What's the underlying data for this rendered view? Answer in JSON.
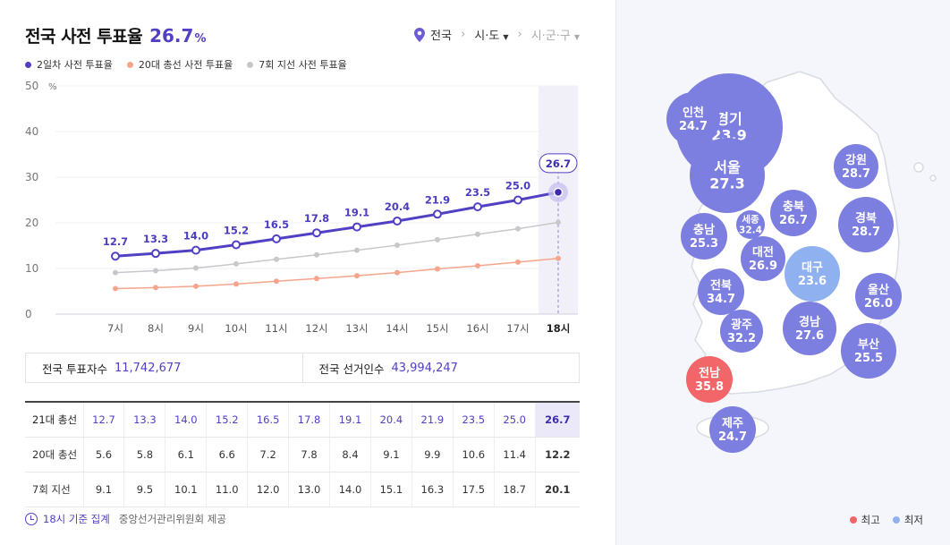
{
  "header": {
    "title": "전국 사전 투표율",
    "value": "26.7",
    "unit": "%"
  },
  "breadcrumb": {
    "level1": "전국",
    "level2": "시·도",
    "level3": "시·군·구"
  },
  "legend": [
    {
      "label": "2일차 사전 투표율",
      "color": "#5140c4"
    },
    {
      "label": "20대 총선 사전 투표율",
      "color": "#f7a48c"
    },
    {
      "label": "7회 지선 사전 투표율",
      "color": "#c8c8cc"
    }
  ],
  "chart_data": {
    "type": "line",
    "categories": [
      "7시",
      "8시",
      "9시",
      "10시",
      "11시",
      "12시",
      "13시",
      "14시",
      "15시",
      "16시",
      "17시",
      "18시"
    ],
    "series": [
      {
        "name": "2일차 사전 투표율",
        "color": "#5140c4",
        "values": [
          12.7,
          13.3,
          14.0,
          15.2,
          16.5,
          17.8,
          19.1,
          20.4,
          21.9,
          23.5,
          25.0,
          26.7
        ]
      },
      {
        "name": "20대 총선 사전 투표율",
        "color": "#f7a48c",
        "values": [
          5.6,
          5.8,
          6.1,
          6.6,
          7.2,
          7.8,
          8.4,
          9.1,
          9.9,
          10.6,
          11.4,
          12.2
        ]
      },
      {
        "name": "7회 지선 사전 투표율",
        "color": "#c8c8cc",
        "values": [
          9.1,
          9.5,
          10.1,
          11.0,
          12.0,
          13.0,
          14.0,
          15.1,
          16.3,
          17.5,
          18.7,
          20.1
        ]
      }
    ],
    "ylim": [
      0,
      50
    ],
    "yticks": [
      "0",
      "10",
      "20",
      "30",
      "40",
      "50"
    ],
    "yunit": "%",
    "highlight_label": "26.7",
    "grid": true
  },
  "summary": {
    "voters_label": "전국 투표자수",
    "voters_value": "11,742,677",
    "electorate_label": "전국 선거인수",
    "electorate_value": "43,994,247"
  },
  "table": {
    "rows": [
      {
        "label": "21대 총선",
        "values": [
          "12.7",
          "13.3",
          "14.0",
          "15.2",
          "16.5",
          "17.8",
          "19.1",
          "20.4",
          "21.9",
          "23.5",
          "25.0",
          "26.7"
        ]
      },
      {
        "label": "20대 총선",
        "values": [
          "5.6",
          "5.8",
          "6.1",
          "6.6",
          "7.2",
          "7.8",
          "8.4",
          "9.1",
          "9.9",
          "10.6",
          "11.4",
          "12.2"
        ]
      },
      {
        "label": "7회 지선",
        "values": [
          "9.1",
          "9.5",
          "10.1",
          "11.0",
          "12.0",
          "13.0",
          "14.0",
          "15.1",
          "16.3",
          "17.5",
          "18.7",
          "20.1"
        ]
      }
    ]
  },
  "footer": {
    "time": "18시 기준 집계",
    "source": "중앙선거관리위원회 제공"
  },
  "map": {
    "regions": [
      {
        "name": "경기",
        "value": "23.9",
        "level": "normal"
      },
      {
        "name": "인천",
        "value": "24.7",
        "level": "normal"
      },
      {
        "name": "서울",
        "value": "27.3",
        "level": "normal"
      },
      {
        "name": "강원",
        "value": "28.7",
        "level": "normal"
      },
      {
        "name": "충북",
        "value": "26.7",
        "level": "normal"
      },
      {
        "name": "세종",
        "value": "32.4",
        "level": "normal"
      },
      {
        "name": "충남",
        "value": "25.3",
        "level": "normal"
      },
      {
        "name": "경북",
        "value": "28.7",
        "level": "normal"
      },
      {
        "name": "대전",
        "value": "26.9",
        "level": "normal"
      },
      {
        "name": "대구",
        "value": "23.6",
        "level": "lowest"
      },
      {
        "name": "전북",
        "value": "34.7",
        "level": "normal"
      },
      {
        "name": "울산",
        "value": "26.0",
        "level": "normal"
      },
      {
        "name": "경남",
        "value": "27.6",
        "level": "normal"
      },
      {
        "name": "광주",
        "value": "32.2",
        "level": "normal"
      },
      {
        "name": "부산",
        "value": "25.5",
        "level": "normal"
      },
      {
        "name": "전남",
        "value": "35.8",
        "level": "highest"
      },
      {
        "name": "제주",
        "value": "24.7",
        "level": "normal"
      }
    ],
    "colors": {
      "normal": "#7d7fe0",
      "highest": "#f2666a",
      "lowest": "#8fb1f0"
    },
    "legend_high": "최고",
    "legend_low": "최저"
  }
}
